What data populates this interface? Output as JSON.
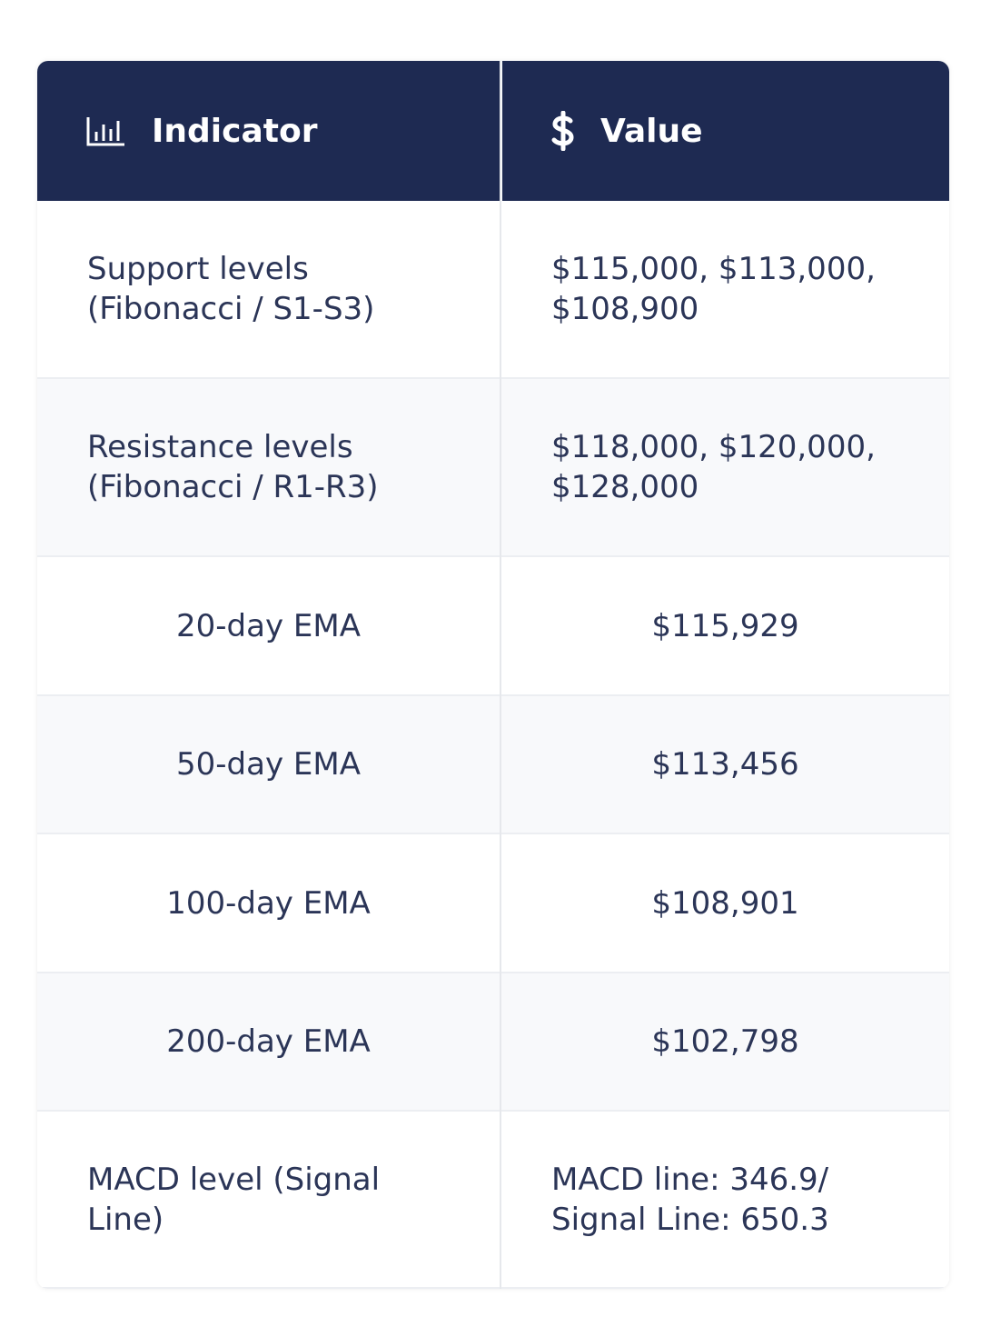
{
  "table": {
    "header": [
      "Indicator",
      "Value"
    ],
    "rows": [
      [
        [
          "Support levels",
          "(Fibonacci / S1-S3)"
        ],
        [
          "$115,000, $113,000,",
          "$108,900"
        ]
      ],
      [
        [
          "Resistance levels",
          "(Fibonacci / R1-R3)"
        ],
        [
          "$118,000, $120,000,",
          "$128,000"
        ]
      ],
      [
        [
          "20-day EMA"
        ],
        [
          "$115,929"
        ]
      ],
      [
        [
          "50-day EMA"
        ],
        [
          "$113,456"
        ]
      ],
      [
        [
          "100-day EMA"
        ],
        [
          "$108,901"
        ]
      ],
      [
        [
          "200-day EMA"
        ],
        [
          "$102,798"
        ]
      ],
      [
        [
          "MACD level (Signal",
          "Line)"
        ],
        [
          "MACD line: 346.9/",
          "Signal Line: 650.3"
        ]
      ]
    ]
  }
}
